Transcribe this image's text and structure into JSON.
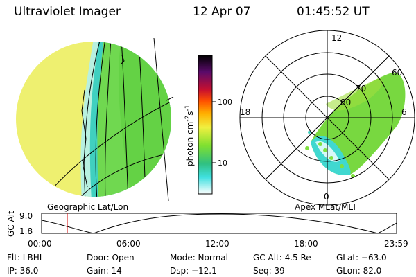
{
  "header": {
    "title": "Ultraviolet Imager",
    "date": "12 Apr 07",
    "time": "01:45:52 UT"
  },
  "colorbar": {
    "label": "photon cm",
    "exp1": "-2",
    "unit2": "s",
    "exp2": "-1",
    "ticks": [
      "100",
      "10"
    ]
  },
  "left_panel": {
    "caption": "Geographic Lat/Lon"
  },
  "right_panel": {
    "caption": "Apex MLat/MLT",
    "mlt_labels": [
      "12",
      "18",
      "6",
      "0"
    ],
    "mlat_labels": [
      "60",
      "70",
      "80"
    ]
  },
  "altitude_plot": {
    "ylabel": "GC Alt",
    "yticks": [
      "9.0",
      "1.8"
    ],
    "xticks": [
      "00:00",
      "06:00",
      "12:00",
      "18:00",
      "23:59"
    ]
  },
  "footer": {
    "rows": [
      [
        "Flt: LBHL",
        "Door: Open",
        "Mode: Normal",
        "GC Alt: 4.5 Re",
        "GLat: −63.0"
      ],
      [
        "IP: 36.0",
        "Gain: 14",
        "Dsp: −12.1",
        "Seq: 39",
        "GLon: 82.0"
      ]
    ]
  }
}
